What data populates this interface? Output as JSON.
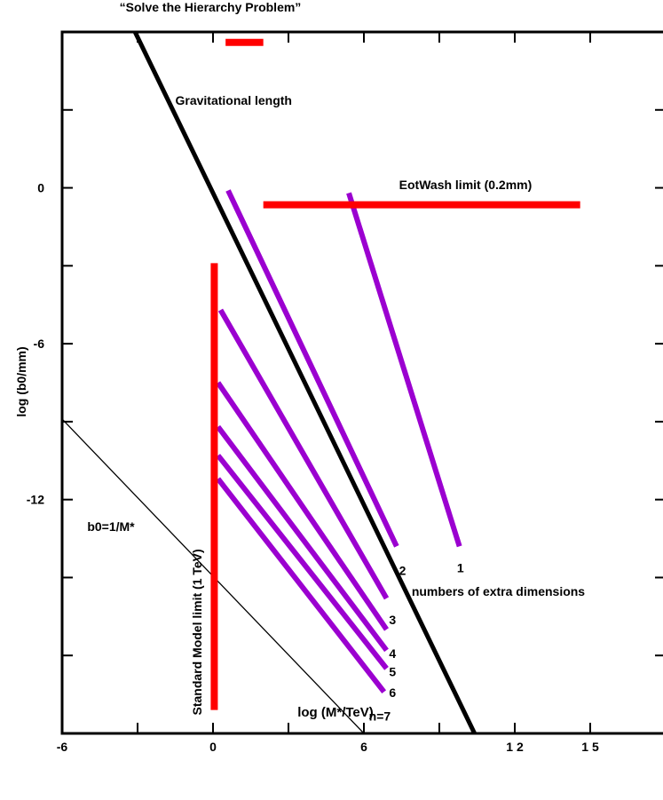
{
  "chart_data": {
    "type": "line",
    "title": "“Solve the Hierarchy Problem”",
    "xlabel": "log (M*/TeV)",
    "ylabel": "log (b0/mm)",
    "xlim": [
      -6,
      18
    ],
    "ylim": [
      -21,
      6
    ],
    "x_ticks": [
      {
        "value": -6,
        "label": "-6"
      },
      {
        "value": 0,
        "label": "0"
      },
      {
        "value": 6,
        "label": "6"
      },
      {
        "value": 12,
        "label": "1 2"
      },
      {
        "value": 15,
        "label": "1 5"
      }
    ],
    "y_ticks": [
      {
        "value": 0,
        "label": "0"
      },
      {
        "value": -6,
        "label": "-6"
      },
      {
        "value": -12,
        "label": "-12"
      }
    ],
    "x_minor_ticks": [
      -3,
      3,
      9
    ],
    "y_minor_ticks": [
      3,
      -3,
      -9,
      -15,
      -18
    ],
    "colors": {
      "black": "#000000",
      "red": "#ff0000",
      "purple": "#9b00d0"
    },
    "series": [
      {
        "name": "Gravitational length",
        "color": "#000000",
        "width": 5,
        "x": [
          -3.1,
          10.4
        ],
        "y": [
          6,
          -21
        ]
      },
      {
        "name": "b0=1/M*",
        "color": "#000000",
        "width": 1.3,
        "x": [
          -6,
          6
        ],
        "y": [
          -8.9,
          -21
        ]
      },
      {
        "name": "n=7",
        "color": "#9b00d0",
        "width": 6,
        "x": [
          0.2,
          6.8
        ],
        "y": [
          -11.2,
          -19.4
        ]
      },
      {
        "name": "6",
        "color": "#9b00d0",
        "width": 6,
        "x": [
          0.2,
          6.9
        ],
        "y": [
          -10.3,
          -18.5
        ]
      },
      {
        "name": "5",
        "color": "#9b00d0",
        "width": 6,
        "x": [
          0.2,
          6.9
        ],
        "y": [
          -9.2,
          -17.8
        ]
      },
      {
        "name": "4",
        "color": "#9b00d0",
        "width": 6,
        "x": [
          0.2,
          6.9
        ],
        "y": [
          -7.5,
          -17.0
        ]
      },
      {
        "name": "3",
        "color": "#9b00d0",
        "width": 6,
        "x": [
          0.3,
          6.9
        ],
        "y": [
          -4.7,
          -15.8
        ]
      },
      {
        "name": "2",
        "color": "#9b00d0",
        "width": 6,
        "x": [
          0.6,
          7.3
        ],
        "y": [
          -0.1,
          -13.8
        ]
      },
      {
        "name": "1",
        "color": "#9b00d0",
        "width": 6,
        "x": [
          5.4,
          9.8
        ],
        "y": [
          -0.2,
          -13.8
        ]
      },
      {
        "name": "EotWash limit (0.2mm)",
        "color": "#ff0000",
        "width": 8,
        "x": [
          2.0,
          14.6
        ],
        "y": [
          -0.65,
          -0.65
        ]
      },
      {
        "name": "Standard Model limit (1 TeV)",
        "color": "#ff0000",
        "width": 8,
        "x": [
          0.05,
          0.05
        ],
        "y": [
          -2.9,
          -20.1
        ]
      },
      {
        "name": "Solve the Hierarchy Problem",
        "color": "#ff0000",
        "width": 8,
        "x": [
          0.5,
          2.0
        ],
        "y": [
          5.6,
          5.6
        ]
      }
    ],
    "annotations": [
      {
        "text": "Gravitational length",
        "x": -1.5,
        "y": 3.2,
        "rotate": 0
      },
      {
        "text": "EotWash limit (0.2mm)",
        "x": 7.4,
        "y": -0.05,
        "rotate": 0
      },
      {
        "text": "b0=1/M*",
        "x": -5.0,
        "y": -13.2,
        "rotate": 0
      },
      {
        "text": "Standard Model limit (1 TeV)",
        "x": -0.45,
        "y": -20.3,
        "rotate": -90
      },
      {
        "text": "numbers of extra dimensions",
        "x": 7.9,
        "y": -15.7,
        "rotate": 0
      },
      {
        "text": "2",
        "x": 7.4,
        "y": -14.9,
        "rotate": 0
      },
      {
        "text": "1",
        "x": 9.7,
        "y": -14.8,
        "rotate": 0
      },
      {
        "text": "3",
        "x": 7.0,
        "y": -16.8,
        "rotate": 0
      },
      {
        "text": "4",
        "x": 7.0,
        "y": -18.1,
        "rotate": 0
      },
      {
        "text": "5",
        "x": 7.0,
        "y": -18.8,
        "rotate": 0
      },
      {
        "text": "6",
        "x": 7.0,
        "y": -19.6,
        "rotate": 0
      },
      {
        "text": "n=7",
        "x": 6.2,
        "y": -20.5,
        "rotate": 0
      }
    ]
  }
}
